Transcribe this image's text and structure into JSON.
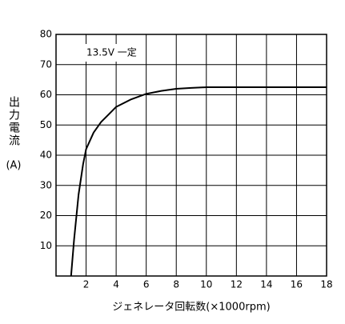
{
  "chart_data": {
    "type": "line",
    "annotation": "13.5V 一定",
    "y_label": "出力電流",
    "y_unit": "(A)",
    "x_label": "ジェネレータ回転数(×1000rpm)",
    "x": [
      1,
      1.2,
      1.5,
      1.8,
      2,
      2.5,
      3,
      3.5,
      4,
      5,
      6,
      7,
      8,
      9,
      10,
      12,
      18
    ],
    "values": [
      0,
      12,
      27,
      37,
      42,
      47.5,
      51,
      53.5,
      56,
      58.5,
      60.3,
      61.3,
      62,
      62.3,
      62.5,
      62.5,
      62.5
    ],
    "color": "#000000",
    "xlim": [
      0,
      18
    ],
    "xticks": [
      2,
      4,
      6,
      8,
      10,
      12,
      14,
      16,
      18
    ],
    "ylim": [
      0,
      80
    ],
    "yticks": [
      10,
      20,
      30,
      40,
      50,
      60,
      70,
      80
    ],
    "grid": true
  }
}
